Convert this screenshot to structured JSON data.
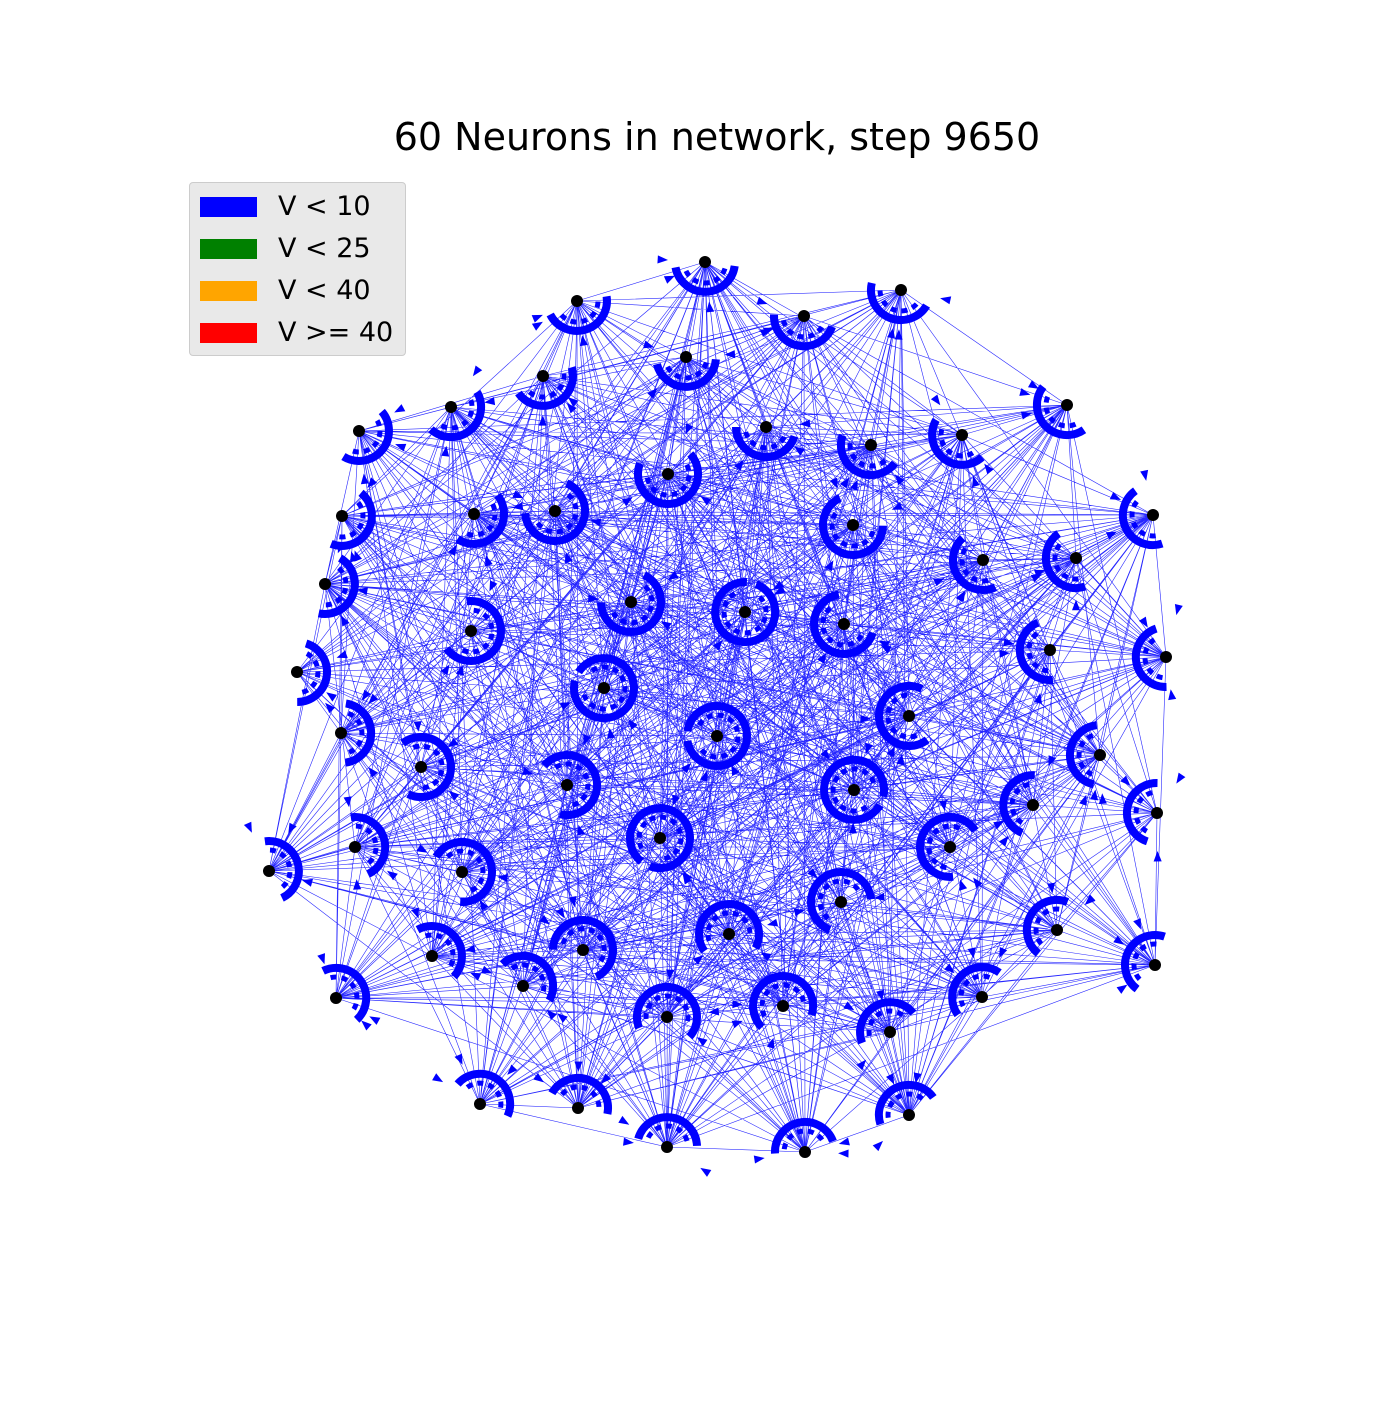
{
  "title": "60 Neurons in network, step 9650",
  "legend": [
    {
      "label": "V < 10",
      "color": "#0000ff"
    },
    {
      "label": "V < 25",
      "color": "#008000"
    },
    {
      "label": "V < 40",
      "color": "#ffa500"
    },
    {
      "label": "V >= 40",
      "color": "#ff0000"
    }
  ],
  "network": {
    "neuron_count": 60,
    "step": 9650,
    "edge_color": "#0000ff",
    "node_color": "#000000",
    "neuron_state": "V < 10"
  }
}
